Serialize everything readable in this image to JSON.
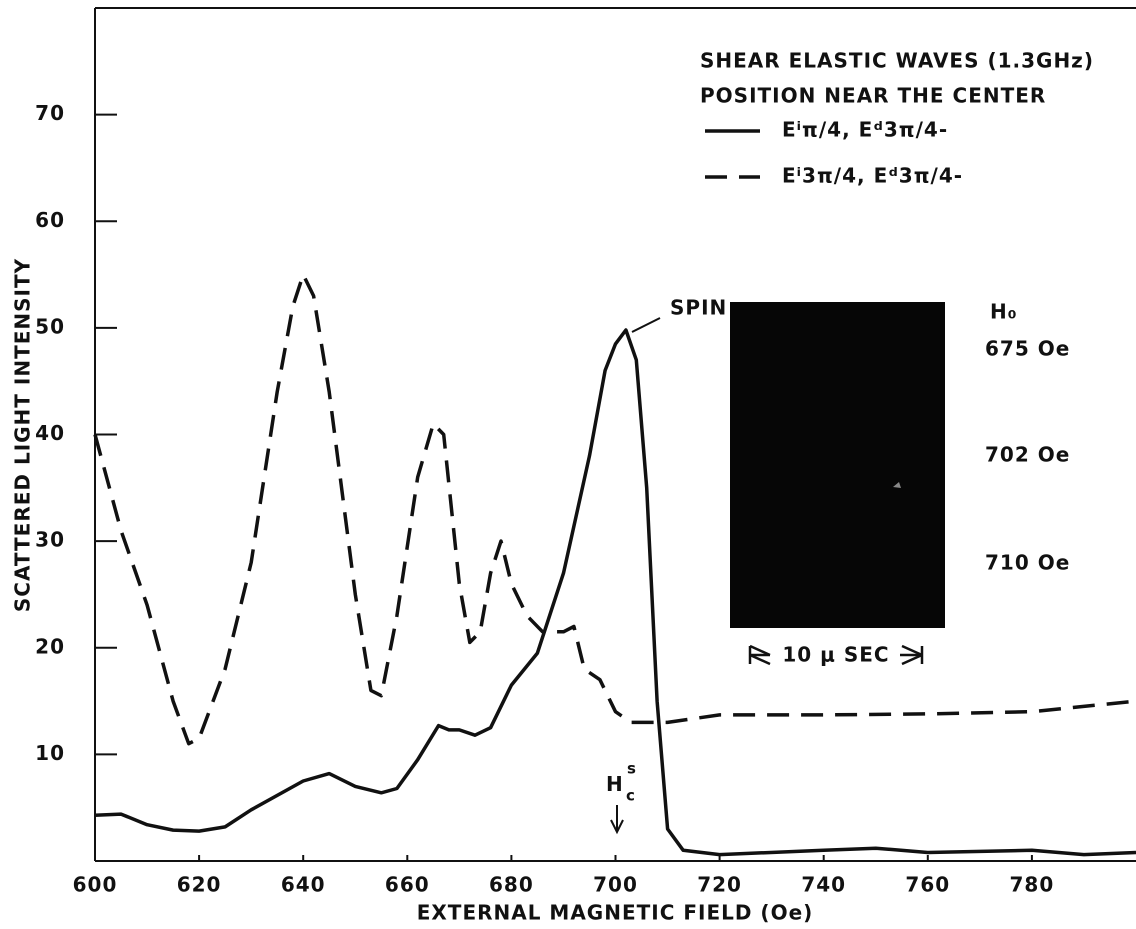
{
  "chart_data": {
    "type": "line",
    "xlabel": "EXTERNAL MAGNETIC FIELD (Oe)",
    "ylabel": "SCATTERED LIGHT INTENSITY",
    "legend_title": [
      "SHEAR ELASTIC WAVES (1.3GHz)",
      "POSITION NEAR THE CENTER"
    ],
    "xlim": [
      600,
      800
    ],
    "ylim": [
      0,
      80
    ],
    "xticks": [
      600,
      620,
      640,
      660,
      680,
      700,
      720,
      740,
      760,
      780
    ],
    "yticks": [
      10,
      20,
      30,
      40,
      50,
      60,
      70
    ],
    "series": [
      {
        "name": "Eⁱπ/4, Eᵈ3π/4-",
        "color": "#111111",
        "dash": "solid",
        "x": [
          600,
          605,
          610,
          615,
          620,
          625,
          630,
          640,
          645,
          650,
          655,
          658,
          662,
          666,
          668,
          670,
          673,
          676,
          680,
          685,
          690,
          695,
          698,
          700,
          702,
          704,
          706,
          708,
          710,
          713,
          720,
          740,
          750,
          760,
          780,
          790,
          800
        ],
        "values": [
          4.3,
          4.4,
          3.4,
          2.9,
          2.8,
          3.2,
          4.8,
          7.5,
          8.2,
          7,
          6.4,
          6.8,
          9.5,
          12.7,
          12.3,
          12.3,
          11.8,
          12.5,
          16.5,
          19.5,
          27,
          38,
          46,
          48.5,
          49.8,
          47,
          35,
          15,
          3,
          1,
          0.6,
          1,
          1.2,
          0.8,
          1,
          0.6,
          0.8
        ]
      },
      {
        "name": "Eⁱ3π/4, Eᵈ3π/4-",
        "color": "#111111",
        "dash": "dashed",
        "x": [
          600,
          605,
          610,
          615,
          618,
          620,
          625,
          630,
          635,
          638,
          640,
          642,
          645,
          650,
          653,
          655,
          658,
          662,
          665,
          667,
          670,
          672,
          674,
          676,
          678,
          680,
          683,
          686,
          690,
          692,
          694,
          697,
          700,
          703,
          710,
          720,
          740,
          760,
          780,
          800
        ],
        "values": [
          40,
          31,
          24,
          15,
          11,
          11.5,
          18,
          28,
          44,
          52,
          55,
          53,
          44,
          25,
          16,
          15.5,
          23,
          36,
          41,
          40,
          26,
          20.5,
          21.5,
          27,
          30,
          26,
          23,
          21.5,
          21.5,
          22,
          18,
          17,
          14,
          13,
          13,
          13.7,
          13.7,
          13.8,
          14,
          15
        ]
      }
    ],
    "annotations": {
      "spin": "SPIN",
      "critical_field": {
        "text": "H",
        "sub": "c",
        "sup": "s"
      }
    },
    "inset": {
      "field_label": "H₀",
      "fields": [
        "675 Oe",
        "702 Oe",
        "710 Oe"
      ],
      "time_scale": "10 μ SEC"
    }
  }
}
